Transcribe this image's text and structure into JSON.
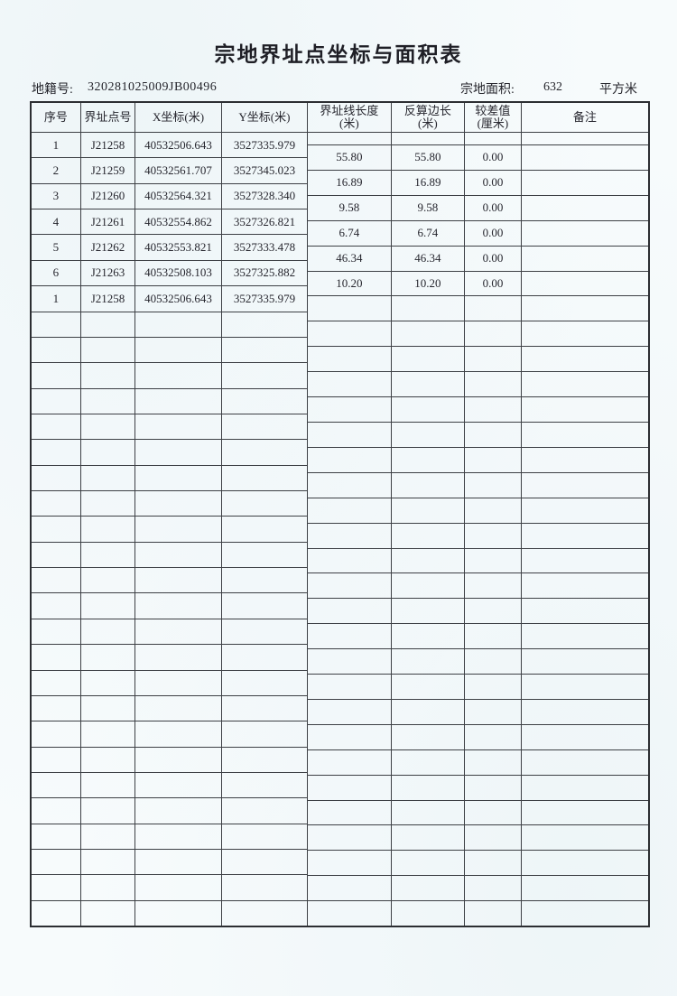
{
  "page": {
    "title": "宗地界址点坐标与面积表",
    "cadastral_label": "地籍号:",
    "cadastral_number": "320281025009JB00496",
    "area_label": "宗地面积:",
    "area_value": "632",
    "area_unit": "平方米"
  },
  "table": {
    "headers": {
      "seq": "序号",
      "point_no": "界址点号",
      "x_coord": "X坐标(米)",
      "y_coord": "Y坐标(米)",
      "line_length": "界址线长度",
      "line_length_unit": "(米)",
      "calc_length": "反算边长",
      "calc_length_unit": "(米)",
      "diff": "较差值",
      "diff_unit": "(厘米)",
      "remark": "备注"
    },
    "points": [
      {
        "seq": "1",
        "point_no": "J21258",
        "x": "40532506.643",
        "y": "3527335.979"
      },
      {
        "seq": "2",
        "point_no": "J21259",
        "x": "40532561.707",
        "y": "3527345.023"
      },
      {
        "seq": "3",
        "point_no": "J21260",
        "x": "40532564.321",
        "y": "3527328.340"
      },
      {
        "seq": "4",
        "point_no": "J21261",
        "x": "40532554.862",
        "y": "3527326.821"
      },
      {
        "seq": "5",
        "point_no": "J21262",
        "x": "40532553.821",
        "y": "3527333.478"
      },
      {
        "seq": "6",
        "point_no": "J21263",
        "x": "40532508.103",
        "y": "3527325.882"
      },
      {
        "seq": "1",
        "point_no": "J21258",
        "x": "40532506.643",
        "y": "3527335.979"
      }
    ],
    "segments": [
      {
        "length": "55.80",
        "calc": "55.80",
        "diff": "0.00",
        "remark": ""
      },
      {
        "length": "16.89",
        "calc": "16.89",
        "diff": "0.00",
        "remark": ""
      },
      {
        "length": "9.58",
        "calc": "9.58",
        "diff": "0.00",
        "remark": ""
      },
      {
        "length": "6.74",
        "calc": "6.74",
        "diff": "0.00",
        "remark": ""
      },
      {
        "length": "46.34",
        "calc": "46.34",
        "diff": "0.00",
        "remark": ""
      },
      {
        "length": "10.20",
        "calc": "10.20",
        "diff": "0.00",
        "remark": ""
      }
    ],
    "left_row_count": 31,
    "right_row_count": 31
  }
}
